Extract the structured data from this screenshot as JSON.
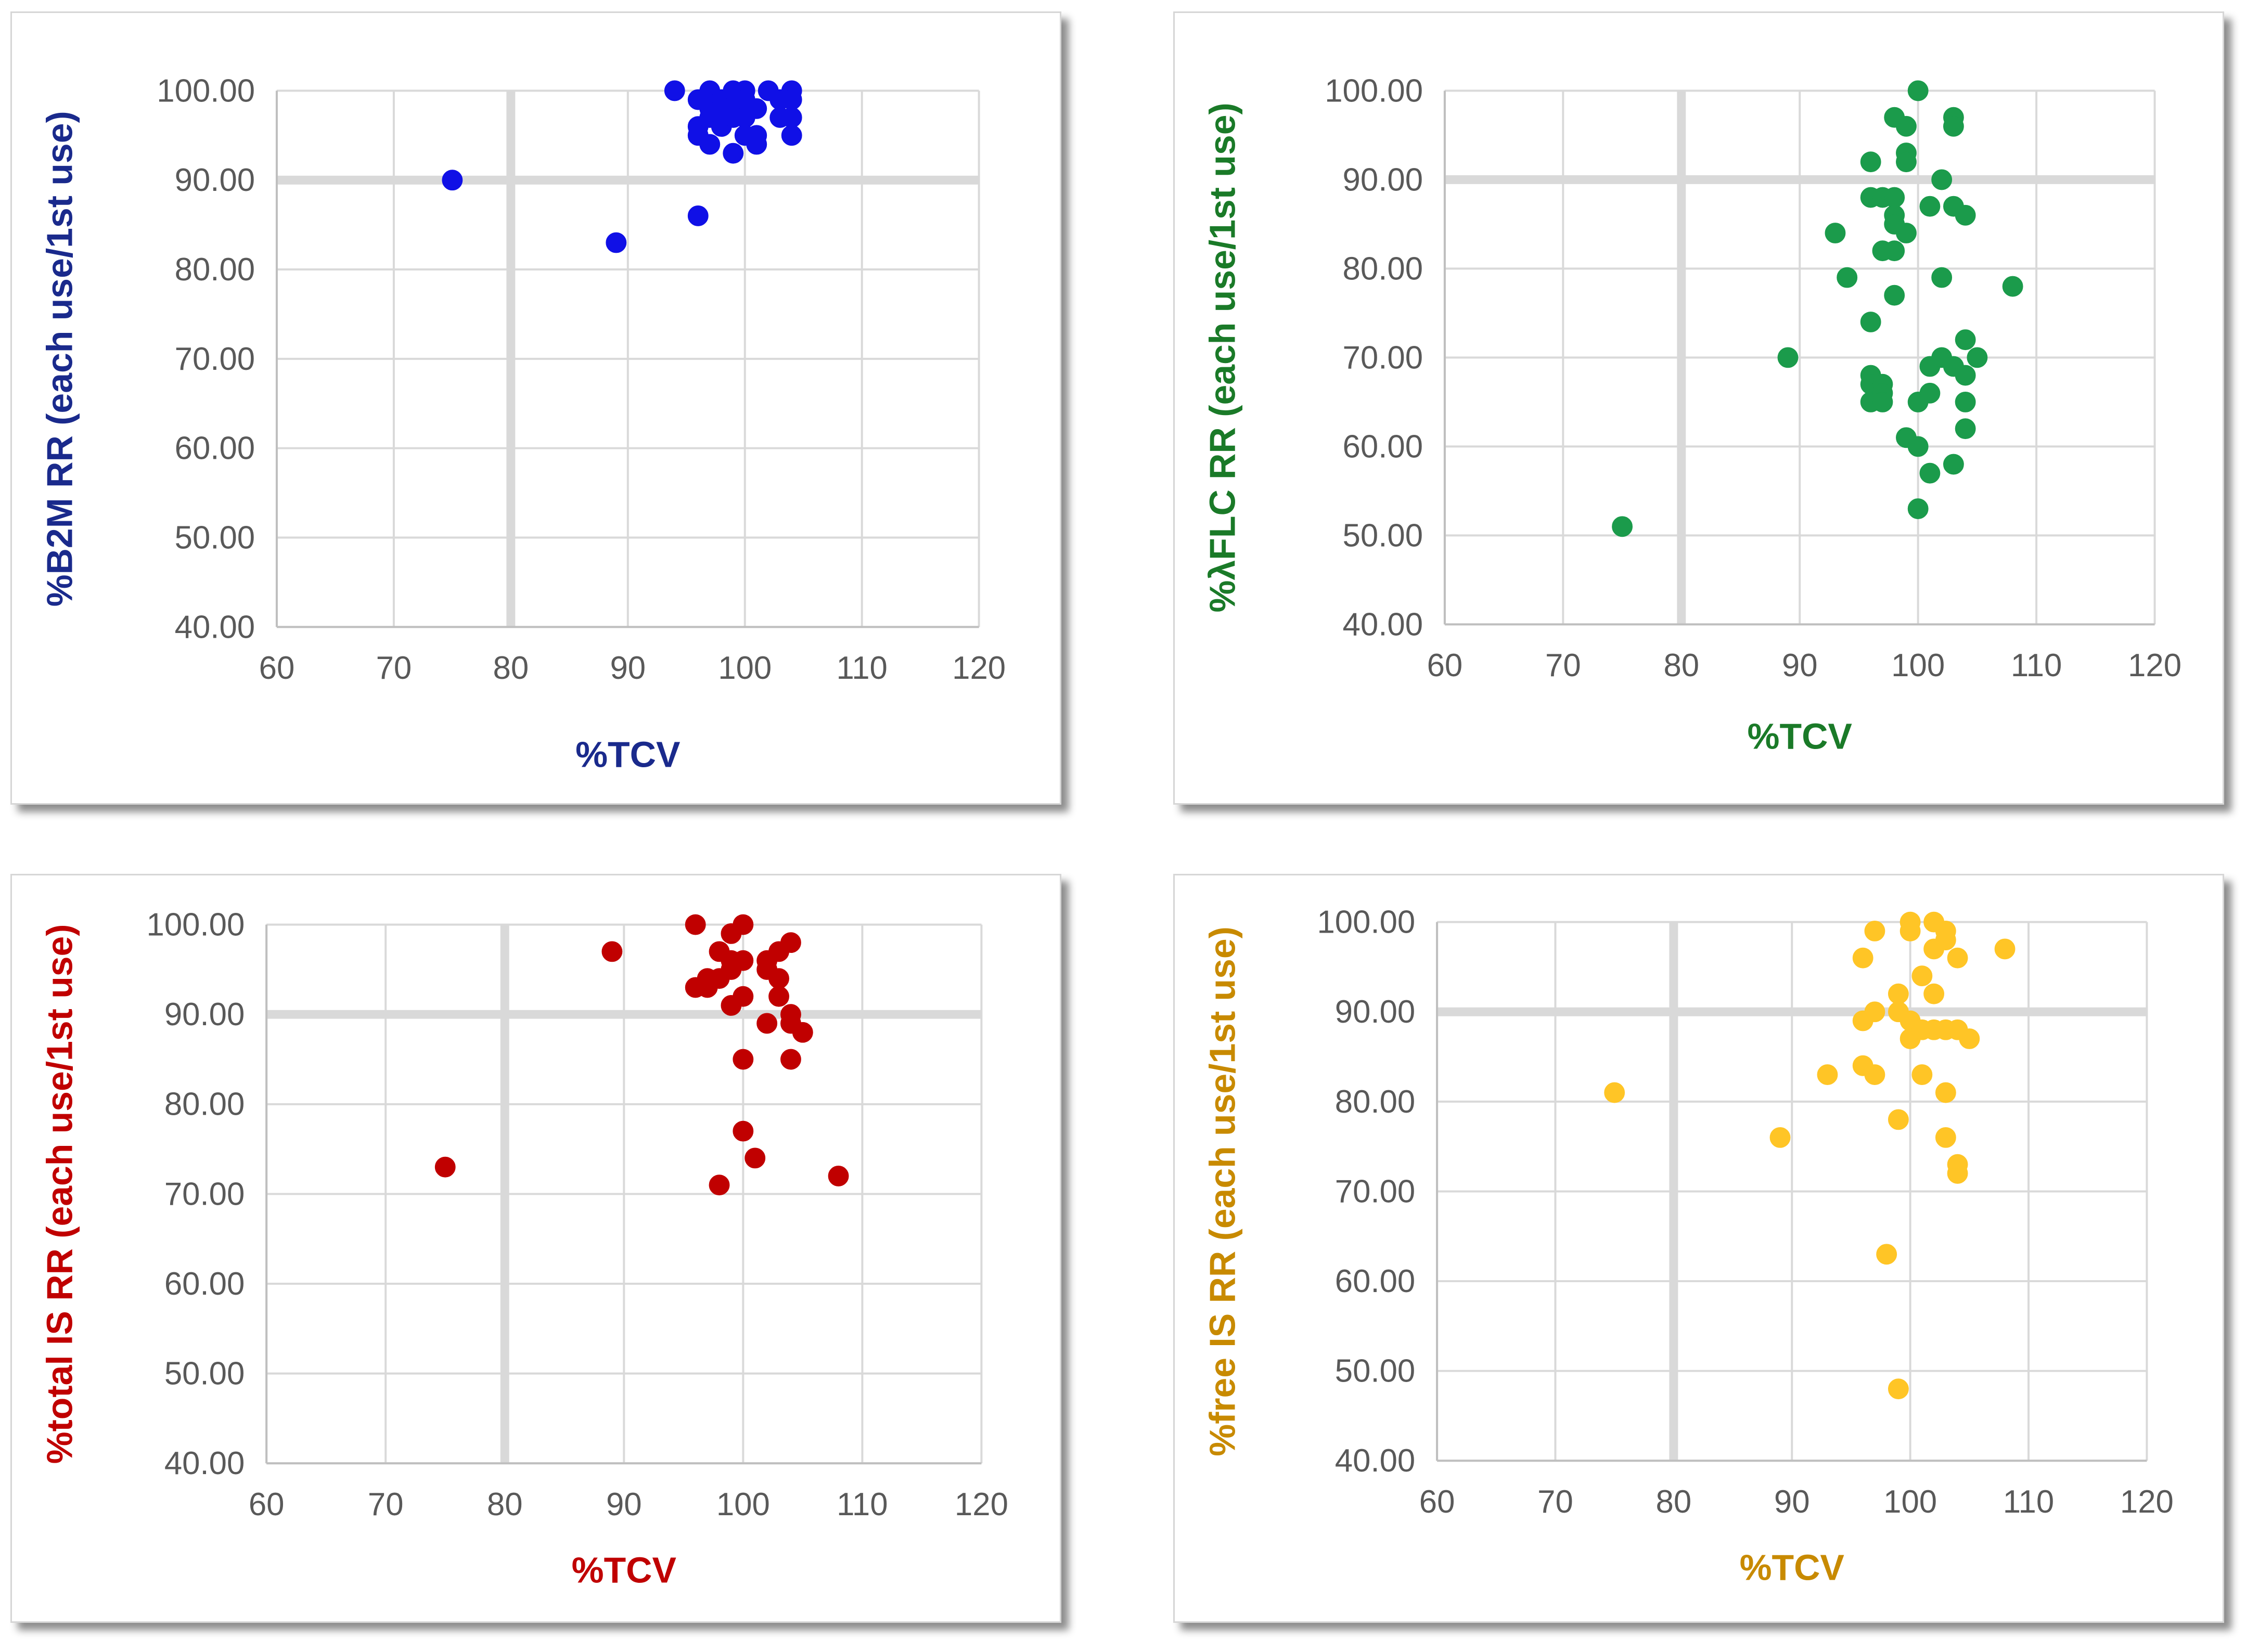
{
  "chart_data": [
    {
      "type": "scatter",
      "title": "",
      "xlabel": "%TCV",
      "ylabel": "%B2M RR (each use/1st use)",
      "xlim": [
        60,
        120
      ],
      "ylim": [
        40,
        100
      ],
      "xticks": [
        "60",
        "70",
        "80",
        "90",
        "100",
        "110",
        "120"
      ],
      "yticks": [
        "40.00",
        "50.00",
        "60.00",
        "70.00",
        "80.00",
        "90.00",
        "100.00"
      ],
      "highlight_x": 80,
      "highlight_y": 90,
      "color": "#1010e6",
      "title_color": "#1a2a8c",
      "points": [
        [
          75,
          90
        ],
        [
          89,
          83
        ],
        [
          94,
          100
        ],
        [
          96,
          86
        ],
        [
          96,
          96
        ],
        [
          96,
          95
        ],
        [
          96,
          99
        ],
        [
          97,
          100
        ],
        [
          97,
          98
        ],
        [
          97,
          94
        ],
        [
          97,
          97
        ],
        [
          98,
          99
        ],
        [
          98,
          96
        ],
        [
          98,
          98
        ],
        [
          99,
          100
        ],
        [
          99,
          97
        ],
        [
          99,
          93
        ],
        [
          99,
          98
        ],
        [
          100,
          100
        ],
        [
          100,
          99
        ],
        [
          100,
          97
        ],
        [
          100,
          95
        ],
        [
          101,
          98
        ],
        [
          101,
          95
        ],
        [
          101,
          94
        ],
        [
          102,
          100
        ],
        [
          103,
          97
        ],
        [
          103,
          99
        ],
        [
          104,
          100
        ],
        [
          104,
          97
        ],
        [
          104,
          95
        ],
        [
          104,
          99
        ]
      ]
    },
    {
      "type": "scatter",
      "title": "",
      "xlabel": "%TCV",
      "ylabel": "%λFLC RR (each use/1st use)",
      "xlim": [
        60,
        120
      ],
      "ylim": [
        40,
        100
      ],
      "xticks": [
        "60",
        "70",
        "80",
        "90",
        "100",
        "110",
        "120"
      ],
      "yticks": [
        "40.00",
        "50.00",
        "60.00",
        "70.00",
        "80.00",
        "90.00",
        "100.00"
      ],
      "highlight_x": 80,
      "highlight_y": 90,
      "color": "#1b9b4b",
      "title_color": "#1a7a28",
      "points": [
        [
          75,
          51
        ],
        [
          89,
          70
        ],
        [
          93,
          84
        ],
        [
          94,
          79
        ],
        [
          96,
          92
        ],
        [
          96,
          88
        ],
        [
          96,
          74
        ],
        [
          96,
          68
        ],
        [
          96,
          67
        ],
        [
          96,
          65
        ],
        [
          97,
          88
        ],
        [
          97,
          82
        ],
        [
          97,
          67
        ],
        [
          97,
          66
        ],
        [
          97,
          65
        ],
        [
          98,
          97
        ],
        [
          98,
          88
        ],
        [
          98,
          86
        ],
        [
          98,
          85
        ],
        [
          98,
          82
        ],
        [
          98,
          77
        ],
        [
          99,
          96
        ],
        [
          99,
          93
        ],
        [
          99,
          92
        ],
        [
          99,
          84
        ],
        [
          99,
          61
        ],
        [
          100,
          100
        ],
        [
          100,
          65
        ],
        [
          100,
          60
        ],
        [
          100,
          53
        ],
        [
          101,
          87
        ],
        [
          101,
          69
        ],
        [
          101,
          66
        ],
        [
          101,
          57
        ],
        [
          102,
          90
        ],
        [
          102,
          79
        ],
        [
          102,
          70
        ],
        [
          103,
          97
        ],
        [
          103,
          96
        ],
        [
          103,
          87
        ],
        [
          103,
          69
        ],
        [
          103,
          58
        ],
        [
          104,
          86
        ],
        [
          104,
          72
        ],
        [
          104,
          68
        ],
        [
          104,
          65
        ],
        [
          104,
          62
        ],
        [
          105,
          70
        ],
        [
          108,
          78
        ]
      ]
    },
    {
      "type": "scatter",
      "title": "",
      "xlabel": "%TCV",
      "ylabel": "%total IS RR (each use/1st use)",
      "xlim": [
        60,
        120
      ],
      "ylim": [
        40,
        100
      ],
      "xticks": [
        "60",
        "70",
        "80",
        "90",
        "100",
        "110",
        "120"
      ],
      "yticks": [
        "40.00",
        "50.00",
        "60.00",
        "70.00",
        "80.00",
        "90.00",
        "100.00"
      ],
      "highlight_x": 80,
      "highlight_y": 90,
      "color": "#c00000",
      "title_color": "#c00000",
      "points": [
        [
          75,
          73
        ],
        [
          89,
          97
        ],
        [
          96,
          100
        ],
        [
          96,
          93
        ],
        [
          97,
          94
        ],
        [
          97,
          93
        ],
        [
          98,
          97
        ],
        [
          98,
          94
        ],
        [
          98,
          71
        ],
        [
          99,
          99
        ],
        [
          99,
          96
        ],
        [
          99,
          95
        ],
        [
          99,
          91
        ],
        [
          100,
          100
        ],
        [
          100,
          96
        ],
        [
          100,
          92
        ],
        [
          100,
          85
        ],
        [
          100,
          77
        ],
        [
          101,
          74
        ],
        [
          102,
          96
        ],
        [
          102,
          95
        ],
        [
          102,
          89
        ],
        [
          103,
          97
        ],
        [
          103,
          94
        ],
        [
          103,
          92
        ],
        [
          104,
          98
        ],
        [
          104,
          90
        ],
        [
          104,
          89
        ],
        [
          104,
          85
        ],
        [
          105,
          88
        ],
        [
          108,
          72
        ]
      ]
    },
    {
      "type": "scatter",
      "title": "",
      "xlabel": "%TCV",
      "ylabel": "%free IS RR (each use/1st use)",
      "xlim": [
        60,
        120
      ],
      "ylim": [
        40,
        100
      ],
      "xticks": [
        "60",
        "70",
        "80",
        "90",
        "100",
        "110",
        "120"
      ],
      "yticks": [
        "40.00",
        "50.00",
        "60.00",
        "70.00",
        "80.00",
        "90.00",
        "100.00"
      ],
      "highlight_x": 80,
      "highlight_y": 90,
      "color": "#ffc526",
      "title_color": "#c88a00",
      "points": [
        [
          75,
          81
        ],
        [
          89,
          76
        ],
        [
          93,
          83
        ],
        [
          96,
          96
        ],
        [
          96,
          89
        ],
        [
          96,
          84
        ],
        [
          97,
          99
        ],
        [
          97,
          90
        ],
        [
          97,
          83
        ],
        [
          98,
          63
        ],
        [
          99,
          92
        ],
        [
          99,
          90
        ],
        [
          99,
          78
        ],
        [
          99,
          48
        ],
        [
          100,
          100
        ],
        [
          100,
          99
        ],
        [
          100,
          89
        ],
        [
          100,
          87
        ],
        [
          101,
          94
        ],
        [
          101,
          88
        ],
        [
          101,
          83
        ],
        [
          102,
          100
        ],
        [
          102,
          97
        ],
        [
          102,
          92
        ],
        [
          102,
          88
        ],
        [
          103,
          99
        ],
        [
          103,
          98
        ],
        [
          103,
          88
        ],
        [
          103,
          81
        ],
        [
          103,
          76
        ],
        [
          104,
          96
        ],
        [
          104,
          88
        ],
        [
          104,
          73
        ],
        [
          104,
          72
        ],
        [
          105,
          87
        ],
        [
          108,
          97
        ]
      ]
    }
  ]
}
